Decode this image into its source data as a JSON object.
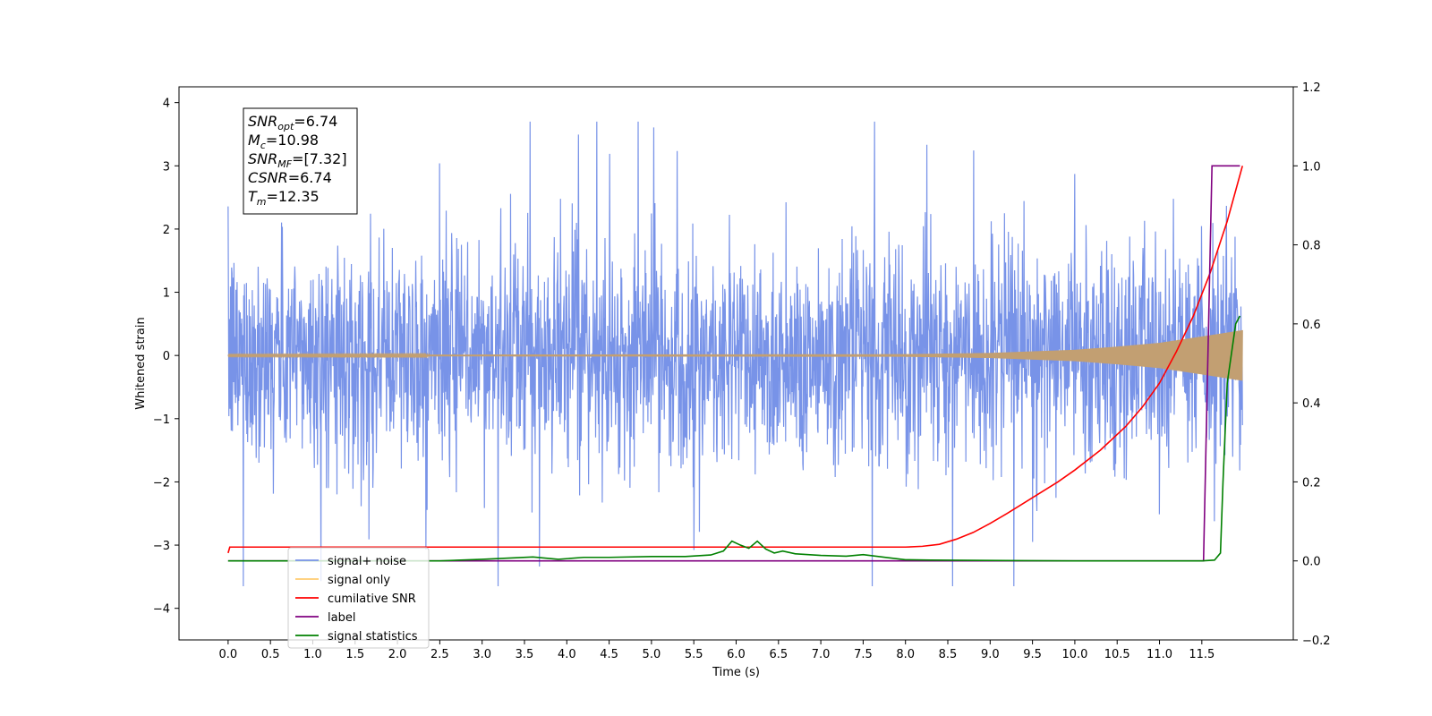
{
  "chart_data": {
    "type": "line",
    "title": "",
    "xlabel": "Time (s)",
    "ylabel": "Whitened strain",
    "xlim": [
      -0.58,
      12.58
    ],
    "ylim": [
      -4.5,
      4.25
    ],
    "y2lim": [
      -0.2,
      1.2
    ],
    "x_ticks": [
      0.0,
      0.5,
      1.0,
      1.5,
      2.0,
      2.5,
      3.0,
      3.5,
      4.0,
      4.5,
      5.0,
      5.5,
      6.0,
      6.5,
      7.0,
      7.5,
      8.0,
      8.5,
      9.0,
      9.5,
      10.0,
      10.5,
      11.0,
      11.5
    ],
    "x_tick_labels": [
      "0.0",
      "0.5",
      "1.0",
      "1.5",
      "2.0",
      "2.5",
      "3.0",
      "3.5",
      "4.0",
      "4.5",
      "5.0",
      "5.5",
      "6.0",
      "6.5",
      "7.0",
      "7.5",
      "8.0",
      "8.5",
      "9.0",
      "9.5",
      "10.0",
      "10.5",
      "11.0",
      "11.5"
    ],
    "y_ticks": [
      -4,
      -3,
      -2,
      -1,
      0,
      1,
      2,
      3,
      4
    ],
    "y_tick_labels": [
      "−4",
      "−3",
      "−2",
      "−1",
      "0",
      "1",
      "2",
      "3",
      "4"
    ],
    "y2_ticks": [
      -0.2,
      0.0,
      0.2,
      0.4,
      0.6,
      0.8,
      1.0,
      1.2
    ],
    "y2_tick_labels": [
      "−0.2",
      "0.0",
      "0.2",
      "0.4",
      "0.6",
      "0.8",
      "1.0",
      "1.2"
    ],
    "grid": false,
    "legend_position": "lower-left",
    "series": [
      {
        "name": "signal+ noise",
        "color": "#7893e8",
        "axis": "left",
        "kind": "noisy",
        "x_range": [
          0.0,
          11.98
        ],
        "typical_range": [
          -1.6,
          1.6
        ],
        "extreme_range": [
          -3.65,
          3.7
        ]
      },
      {
        "name": "signal only",
        "color": "#c29f72",
        "axis": "left",
        "kind": "chirp",
        "x_range": [
          0.0,
          11.98
        ],
        "envelope": {
          "x": [
            0.0,
            8.0,
            9.0,
            10.0,
            10.5,
            11.0,
            11.5,
            11.98
          ],
          "amp": [
            0.01,
            0.02,
            0.04,
            0.09,
            0.14,
            0.2,
            0.3,
            0.4
          ]
        }
      },
      {
        "name": "cumilative SNR",
        "color": "#ff0000",
        "axis": "right",
        "x": [
          0.0,
          0.02,
          8.0,
          8.2,
          8.4,
          8.6,
          8.8,
          9.0,
          9.2,
          9.5,
          9.8,
          10.0,
          10.3,
          10.6,
          10.8,
          11.0,
          11.2,
          11.4,
          11.6,
          11.8,
          11.98
        ],
        "values": [
          0.02,
          0.035,
          0.035,
          0.037,
          0.042,
          0.055,
          0.072,
          0.095,
          0.12,
          0.16,
          0.2,
          0.23,
          0.28,
          0.34,
          0.39,
          0.45,
          0.53,
          0.62,
          0.73,
          0.86,
          1.0
        ]
      },
      {
        "name": "label",
        "color": "#800080",
        "axis": "right",
        "x": [
          0.0,
          11.52,
          11.62,
          11.95
        ],
        "values": [
          0.0,
          0.0,
          1.0,
          1.0
        ]
      },
      {
        "name": "signal statistics",
        "color": "#008000",
        "axis": "right",
        "x": [
          0.0,
          2.5,
          3.0,
          3.4,
          3.6,
          3.9,
          4.2,
          4.5,
          5.0,
          5.4,
          5.7,
          5.85,
          5.95,
          6.05,
          6.15,
          6.25,
          6.35,
          6.45,
          6.55,
          6.7,
          7.0,
          7.3,
          7.5,
          7.8,
          8.0,
          8.3,
          10.0,
          11.5,
          11.65,
          11.72,
          11.75,
          11.8,
          11.9,
          11.95
        ],
        "values": [
          0.0,
          0.0,
          0.004,
          0.008,
          0.01,
          0.004,
          0.009,
          0.009,
          0.011,
          0.011,
          0.015,
          0.025,
          0.05,
          0.04,
          0.032,
          0.05,
          0.03,
          0.02,
          0.025,
          0.018,
          0.014,
          0.012,
          0.016,
          0.008,
          0.003,
          0.002,
          0.0,
          0.0,
          0.002,
          0.02,
          0.2,
          0.45,
          0.6,
          0.62
        ]
      }
    ],
    "legend": [
      {
        "label": "signal+ noise",
        "color": "#7893e8"
      },
      {
        "label": "signal only",
        "color": "#ffcc70"
      },
      {
        "label": "cumilative SNR",
        "color": "#ff0000"
      },
      {
        "label": "label",
        "color": "#800080"
      },
      {
        "label": "signal statistics",
        "color": "#008000"
      }
    ],
    "annotation": {
      "lines": [
        {
          "main": "SNR",
          "sub": "opt",
          "value": "=6.74"
        },
        {
          "main": "M",
          "sub": "c",
          "value": "=10.98"
        },
        {
          "main": "SNR",
          "sub": "MF",
          "value": "=[7.32]"
        },
        {
          "main": "CSNR",
          "sub": "",
          "value": "=6.74"
        },
        {
          "main": "T",
          "sub": "m",
          "value": "=12.35"
        }
      ]
    }
  }
}
